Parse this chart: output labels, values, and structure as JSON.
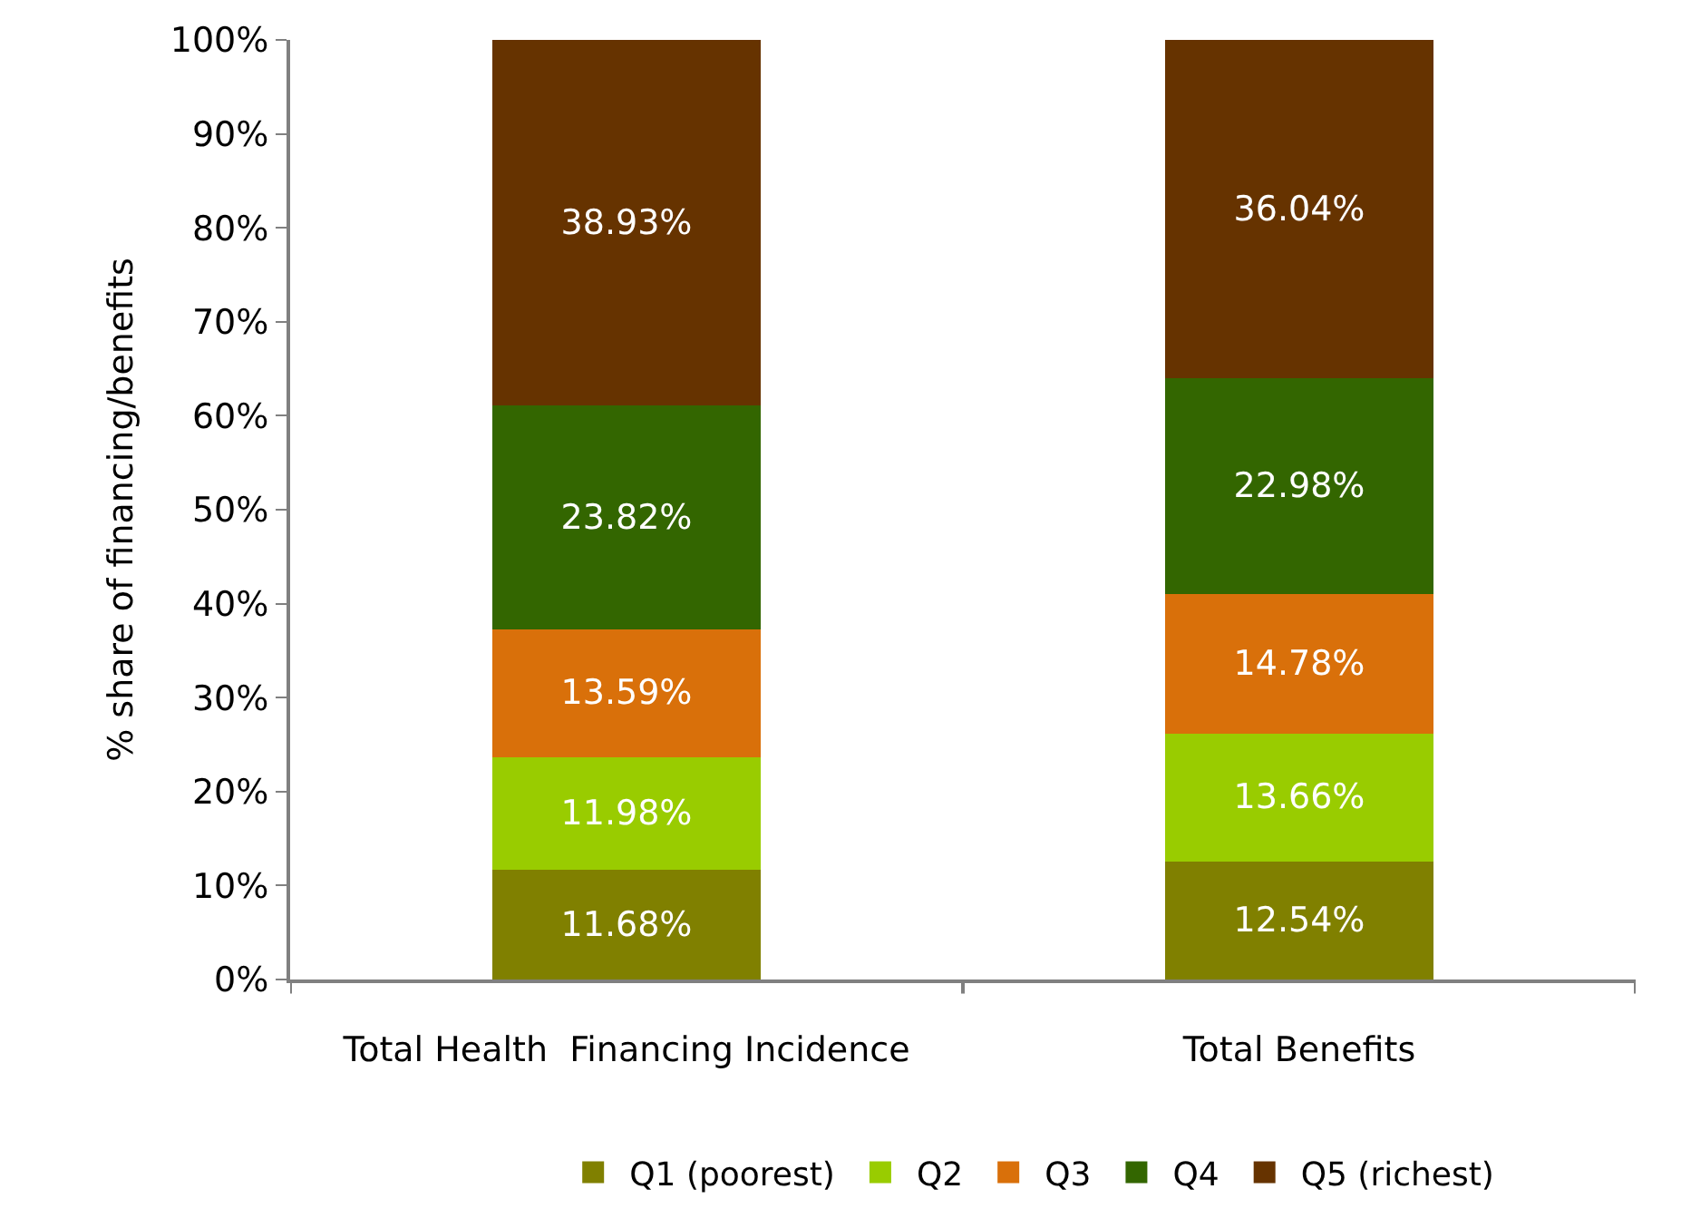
{
  "chart_data": {
    "type": "bar",
    "stacked": true,
    "ylabel": "% share of financing/benefits",
    "categories": [
      "Total Health  Financing Incidence",
      "Total Benefits"
    ],
    "series": [
      {
        "name": "Q1 (poorest)",
        "color": "#808000",
        "values": [
          11.68,
          12.54
        ],
        "value_labels": [
          "11.68%",
          "12.54%"
        ]
      },
      {
        "name": "Q2",
        "color": "#99cc00",
        "values": [
          11.98,
          13.66
        ],
        "value_labels": [
          "11.98%",
          "13.66%"
        ]
      },
      {
        "name": "Q3",
        "color": "#d9700a",
        "values": [
          13.59,
          14.78
        ],
        "value_labels": [
          "13.59%",
          "14.78%"
        ]
      },
      {
        "name": "Q4",
        "color": "#336600",
        "values": [
          23.82,
          22.98
        ],
        "value_labels": [
          "23.82%",
          "22.98%"
        ]
      },
      {
        "name": "Q5 (richest)",
        "color": "#663300",
        "values": [
          38.93,
          36.04
        ],
        "value_labels": [
          "38.93%",
          "36.04%"
        ]
      }
    ],
    "ylim": [
      0,
      100
    ],
    "yticks": [
      {
        "value": 0,
        "label": "0%"
      },
      {
        "value": 10,
        "label": "10%"
      },
      {
        "value": 20,
        "label": "20%"
      },
      {
        "value": 30,
        "label": "30%"
      },
      {
        "value": 40,
        "label": "40%"
      },
      {
        "value": 50,
        "label": "50%"
      },
      {
        "value": 60,
        "label": "60%"
      },
      {
        "value": 70,
        "label": "70%"
      },
      {
        "value": 80,
        "label": "80%"
      },
      {
        "value": 90,
        "label": "90%"
      },
      {
        "value": 100,
        "label": "100%"
      }
    ],
    "grid": false,
    "legend": "bottom"
  }
}
